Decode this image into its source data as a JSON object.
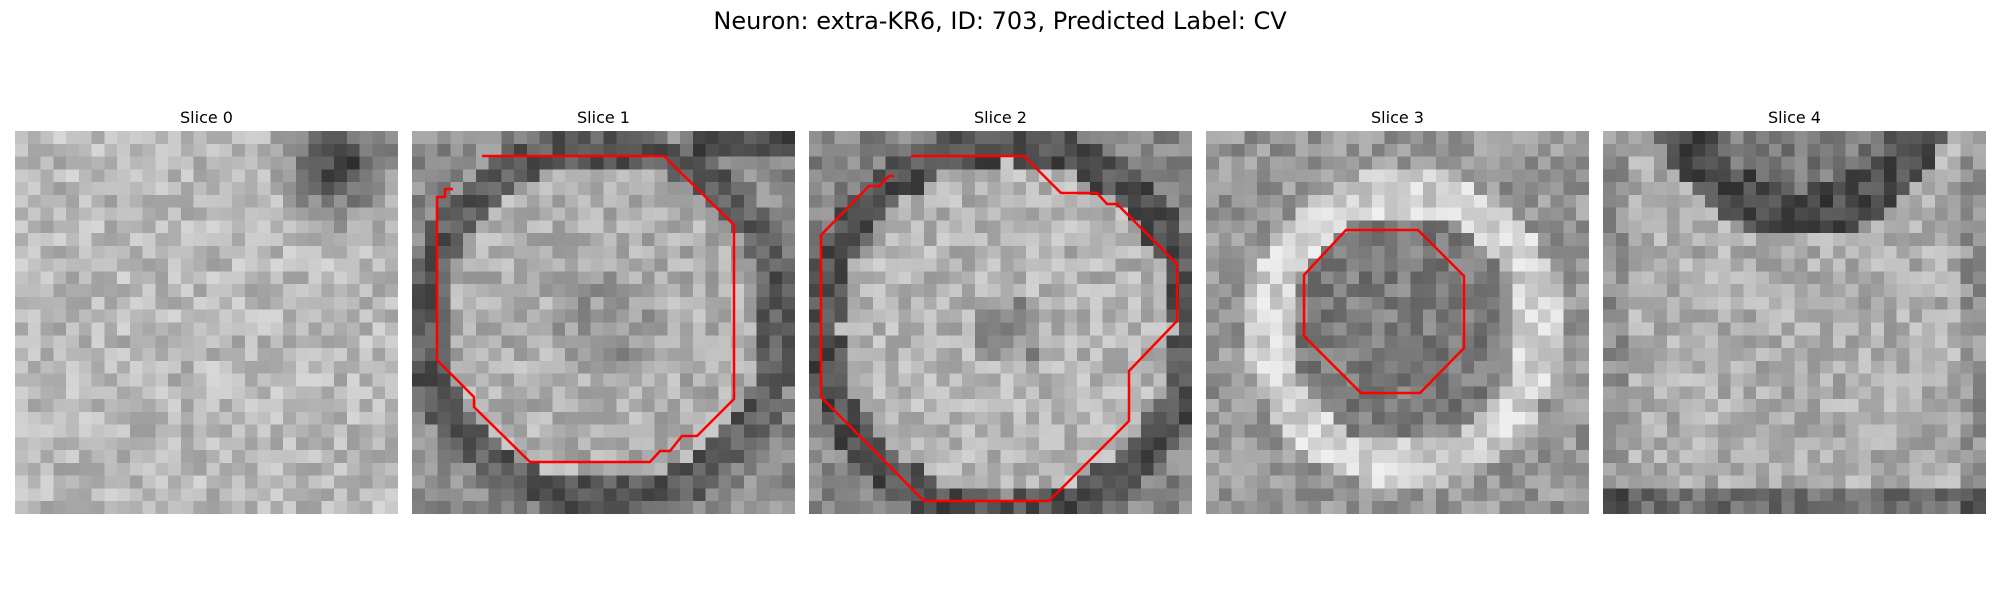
{
  "figure": {
    "title": "Neuron: extra-KR6, ID: 703, Predicted Label: CV"
  },
  "colors": {
    "contour": "#ff0000",
    "background": "#ffffff"
  },
  "panels": [
    {
      "title": "Slice 0",
      "has_contour": false
    },
    {
      "title": "Slice 1",
      "has_contour": true
    },
    {
      "title": "Slice 2",
      "has_contour": true
    },
    {
      "title": "Slice 3",
      "has_contour": true
    },
    {
      "title": "Slice 4",
      "has_contour": false
    }
  ]
}
